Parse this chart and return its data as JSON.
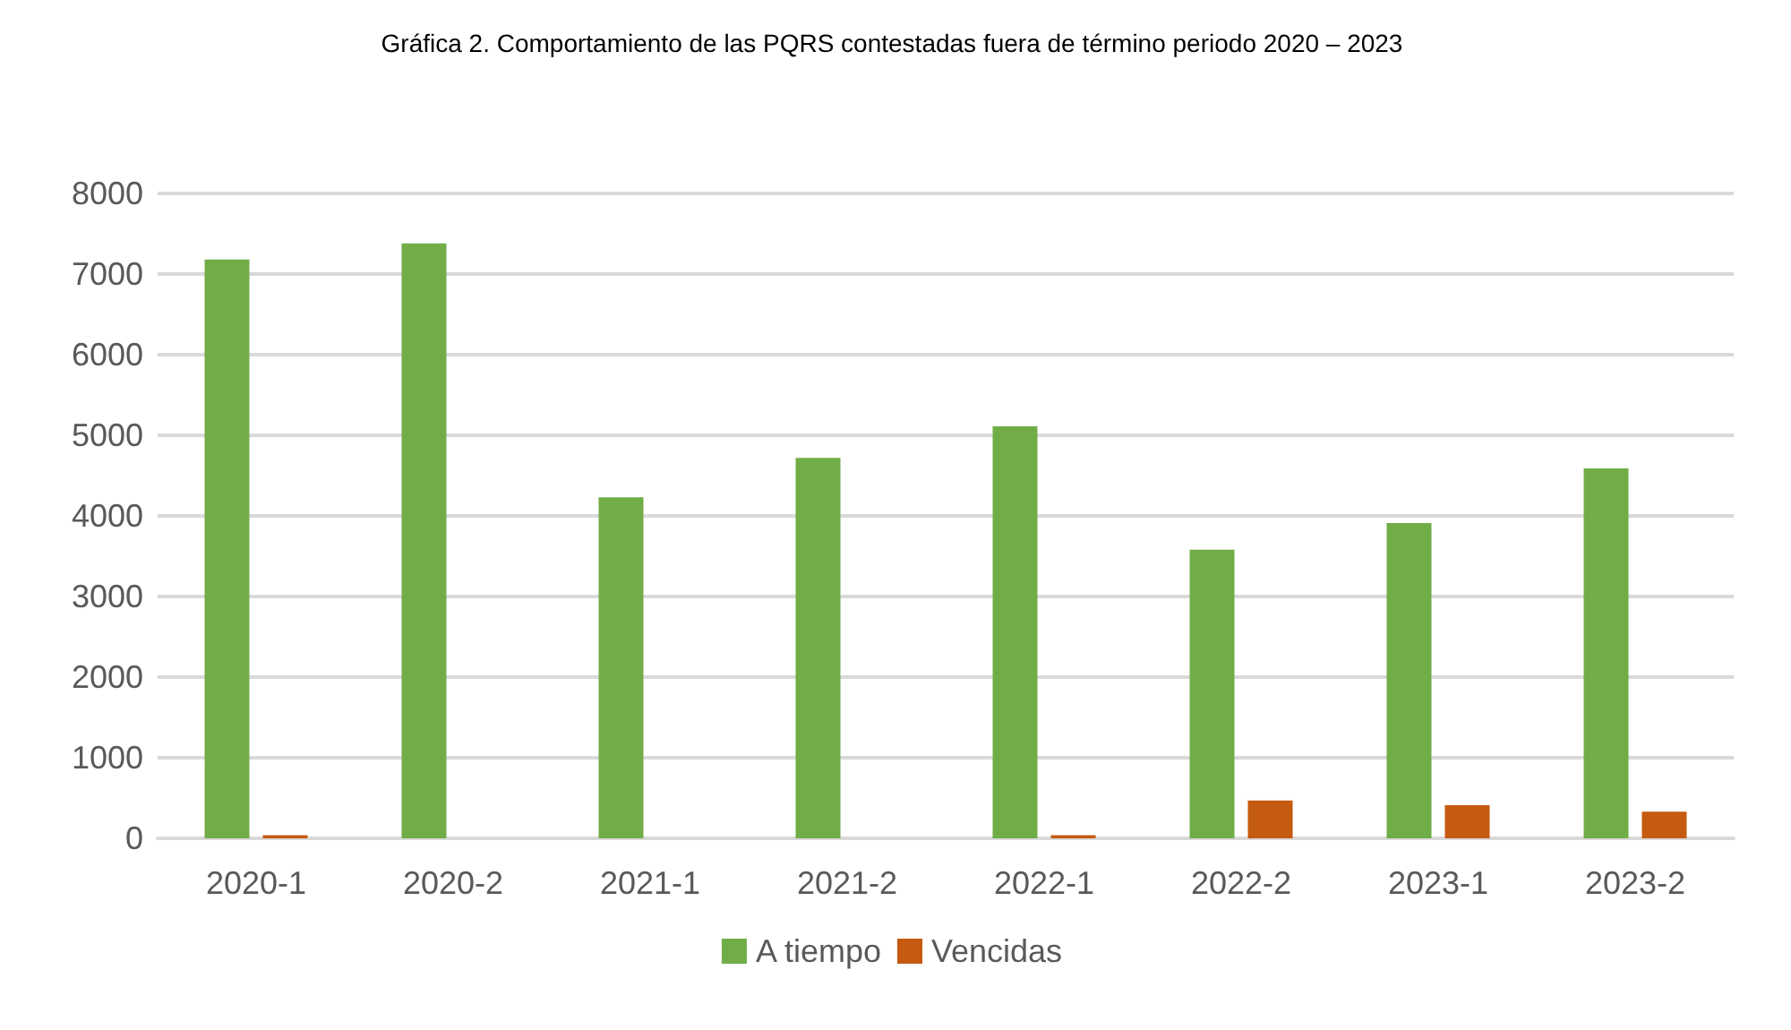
{
  "chart_data": {
    "type": "bar",
    "title": "Gráfica 2. Comportamiento de las PQRS contestadas fuera de término periodo 2020 – 2023",
    "categories": [
      "2020-1",
      "2020-2",
      "2021-1",
      "2021-2",
      "2022-1",
      "2022-2",
      "2023-1",
      "2023-2"
    ],
    "series": [
      {
        "name": "A tiempo",
        "color": "#70ad47",
        "values": [
          7180,
          7380,
          4230,
          4720,
          5110,
          3580,
          3910,
          4590
        ]
      },
      {
        "name": "Vencidas",
        "color": "#c55a11",
        "values": [
          40,
          0,
          0,
          0,
          40,
          470,
          410,
          330
        ]
      }
    ],
    "ylim": [
      0,
      8000
    ],
    "yticks": [
      0,
      1000,
      2000,
      3000,
      4000,
      5000,
      6000,
      7000,
      8000
    ],
    "grid": "y",
    "legend": "bottom"
  }
}
